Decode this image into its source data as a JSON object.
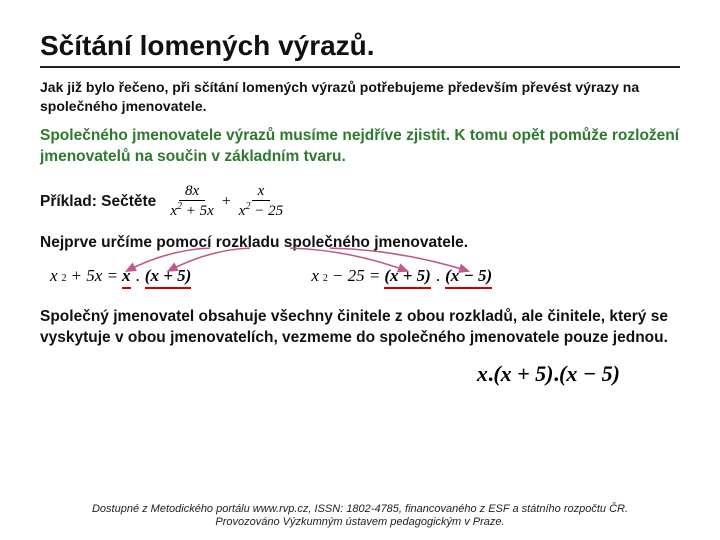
{
  "title": "Sčítání lomených výrazů.",
  "p1": "Jak již bylo řečeno, při sčítání lomených výrazů potřebujeme především převést výrazy na společného jmenovatele.",
  "p2": "Společného jmenovatele výrazů musíme nejdříve zjistit. K tomu opět pomůže rozložení jmenovatelů na součin v základním tvaru.",
  "p3_label": "Příklad: Sečtěte",
  "frac1": {
    "num": "8x",
    "den_a": "x",
    "den_rest": " + 5x"
  },
  "frac2": {
    "num": "x",
    "den_a": "x",
    "den_rest": " − 25"
  },
  "p4": "Nejprve určíme pomocí rozkladu společného jmenovatele.",
  "eq1": {
    "lhs_a": "x",
    "lhs_rest": " + 5x =",
    "r1": "x",
    "r2": "(x + 5)"
  },
  "eq2": {
    "lhs_a": "x",
    "lhs_rest": " − 25 =",
    "r1": "(x + 5)",
    "r2": "(x − 5)"
  },
  "p5": "Společný jmenovatel obsahuje všechny činitele z obou rozkladů, ale činitele, který se vyskytuje v obou jmenovatelích, vezmeme do společného jmenovatele pouze jednou.",
  "result": {
    "a": "x",
    "b": "(x + 5)",
    "c": "(x − 5)"
  },
  "footer1": "Dostupné z Metodického portálu www.rvp.cz, ISSN: 1802-4785, financovaného z ESF a státního rozpočtu ČR.",
  "footer2": "Provozováno Výzkumným ústavem pedagogickým v Praze.",
  "colors": {
    "green": "#2d7a2d",
    "red": "#cc0000",
    "arrow": "#c05a8a"
  }
}
